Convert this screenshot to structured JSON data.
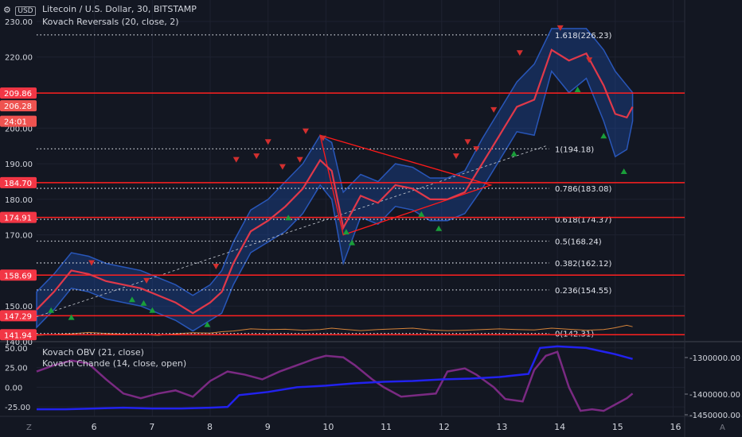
{
  "header": {
    "currency": "USD",
    "title": "Litecoin / U.S. Dollar, 30, BITSTAMP",
    "indicator_main": "Kovach Reversals (20, close, 2)",
    "indicator_lower_1": "Kovach OBV (21, close)",
    "indicator_lower_2": "Kovach Chande (14, close, open)",
    "corner_left": "Z",
    "corner_right": "A"
  },
  "colors": {
    "background": "#131722",
    "grid": "#1e2230",
    "price_line": "#e0394a",
    "band": "#1e50b4",
    "fib": "#c8ccd4",
    "triangle": "#ff1a1a",
    "obv": "#2222ee",
    "chande": "#7a2a82",
    "volume_line": "#d4833a",
    "bull_marker": "#1a9e3a",
    "bear_marker": "#d32f2f"
  },
  "chart_data": [
    {
      "type": "line",
      "name": "price",
      "x_ticks": [
        "6",
        "7",
        "8",
        "9",
        "10",
        "11",
        "12",
        "13",
        "14",
        "15",
        "16"
      ],
      "y_ticks": [
        "140.00",
        "150.00",
        "170.00",
        "180.00",
        "190.00",
        "200.00",
        "220.00",
        "230.00"
      ],
      "ylim": [
        140,
        232
      ],
      "series": [
        {
          "x": [
            5.0,
            5.3,
            5.6,
            5.9,
            6.2,
            6.5,
            6.8,
            7.1,
            7.4,
            7.7,
            8.0,
            8.2,
            8.4,
            8.7,
            9.0,
            9.3,
            9.6,
            9.9,
            10.1,
            10.3,
            10.6,
            10.9,
            11.2,
            11.5,
            11.8,
            12.1,
            12.4,
            12.7,
            13.0,
            13.3,
            13.6,
            13.9,
            14.2,
            14.5,
            14.8,
            15.0,
            15.2,
            15.3
          ],
          "y": [
            149,
            154,
            160,
            159,
            157,
            156,
            155,
            153,
            151,
            148,
            151,
            154,
            162,
            171,
            174,
            178,
            183,
            191,
            188,
            172,
            181,
            179,
            184,
            183,
            180,
            180,
            182,
            190,
            198,
            206,
            208,
            222,
            219,
            221,
            212,
            204,
            203,
            206
          ]
        }
      ],
      "upper_band": [
        154,
        159,
        165,
        164,
        162,
        161,
        160,
        158,
        156,
        153,
        156,
        160,
        168,
        177,
        180,
        185,
        190,
        198,
        196,
        182,
        187,
        185,
        190,
        189,
        186,
        186,
        188,
        197,
        205,
        213,
        218,
        228,
        228,
        228,
        222,
        216,
        212,
        210
      ],
      "lower_band": [
        144,
        149,
        155,
        154,
        152,
        151,
        150,
        148,
        146,
        143,
        146,
        148,
        156,
        165,
        168,
        171,
        176,
        184,
        180,
        162,
        175,
        173,
        178,
        177,
        174,
        174,
        176,
        183,
        191,
        199,
        198,
        216,
        210,
        214,
        202,
        192,
        194,
        202
      ],
      "volume": [
        141.8,
        142.0,
        142.2,
        142.6,
        142.3,
        142.1,
        142.0,
        141.8,
        142.2,
        142.5,
        142.4,
        142.8,
        143.0,
        143.6,
        143.4,
        143.5,
        143.2,
        143.4,
        143.8,
        143.5,
        143.1,
        143.4,
        143.6,
        143.8,
        143.3,
        143.1,
        143.2,
        143.4,
        143.6,
        143.4,
        143.3,
        143.8,
        143.5,
        143.2,
        143.4,
        143.9,
        144.6,
        144.2
      ],
      "bull_markers": [
        [
          5.25,
          149
        ],
        [
          5.6,
          147
        ],
        [
          6.65,
          152
        ],
        [
          6.85,
          151
        ],
        [
          7.0,
          149
        ],
        [
          7.95,
          145
        ],
        [
          9.35,
          175
        ],
        [
          10.35,
          171
        ],
        [
          10.45,
          168
        ],
        [
          11.65,
          176
        ],
        [
          11.95,
          172
        ],
        [
          13.25,
          193
        ],
        [
          14.35,
          211
        ],
        [
          14.8,
          198
        ],
        [
          15.15,
          188
        ]
      ],
      "bear_markers": [
        [
          5.95,
          162
        ],
        [
          6.9,
          157
        ],
        [
          8.1,
          161
        ],
        [
          8.45,
          191
        ],
        [
          8.8,
          192
        ],
        [
          9.0,
          196
        ],
        [
          9.25,
          189
        ],
        [
          9.55,
          191
        ],
        [
          9.65,
          199
        ],
        [
          9.95,
          197
        ],
        [
          12.25,
          192
        ],
        [
          12.45,
          196
        ],
        [
          12.6,
          194
        ],
        [
          12.9,
          205
        ],
        [
          13.35,
          221
        ],
        [
          14.05,
          228
        ],
        [
          14.55,
          219
        ]
      ],
      "fib_levels": [
        {
          "value": 226.23,
          "label": "1.618(226.23)"
        },
        {
          "value": 194.18,
          "label": "1(194.18)"
        },
        {
          "value": 183.08,
          "label": "0.786(183.08)"
        },
        {
          "value": 174.37,
          "label": "0.618(174.37)"
        },
        {
          "value": 168.24,
          "label": "0.5(168.24)"
        },
        {
          "value": 162.12,
          "label": "0.382(162.12)"
        },
        {
          "value": 154.55,
          "label": "0.236(154.55)"
        },
        {
          "value": 142.31,
          "label": "0(142.31)"
        }
      ],
      "red_levels": [
        {
          "value": 209.86,
          "label": "209.86"
        },
        {
          "value": 184.7,
          "label": "184.70"
        },
        {
          "value": 174.91,
          "label": "174.91"
        },
        {
          "value": 158.69,
          "label": "158.69"
        },
        {
          "value": 147.29,
          "label": "147.29"
        },
        {
          "value": 141.94,
          "label": "141.94"
        }
      ],
      "price_tags": [
        {
          "value": 206.28,
          "label": "206.28"
        },
        {
          "value": 203.5,
          "label": "24:01"
        }
      ],
      "triangle": [
        [
          9.9,
          198
        ],
        [
          12.85,
          184
        ],
        [
          10.3,
          170
        ]
      ],
      "trend_line": [
        [
          5.0,
          147
        ],
        [
          13.8,
          195
        ]
      ]
    },
    {
      "type": "line",
      "name": "oscillators",
      "y_ticks_left": [
        "50.00",
        "25.00",
        "0.00",
        "-25.00"
      ],
      "y_ticks_right": [
        "-1300000.00",
        "-1400000.00",
        "-1450000.00"
      ],
      "ylim_left": [
        -37,
        60
      ],
      "series": [
        {
          "name": "Kovach OBV (21, close)",
          "x": [
            5.0,
            5.5,
            6.0,
            6.5,
            7.0,
            7.5,
            8.0,
            8.3,
            8.5,
            9.0,
            9.5,
            10.0,
            10.5,
            11.0,
            11.5,
            12.0,
            12.5,
            13.0,
            13.5,
            13.7,
            14.0,
            14.5,
            15.0,
            15.2,
            15.3
          ],
          "y": [
            -28,
            -28,
            -27,
            -26,
            -27,
            -27,
            -26,
            -25,
            -10,
            -6,
            0,
            2,
            5,
            7,
            8,
            10,
            11,
            13,
            17,
            50,
            52,
            50,
            42,
            38,
            36
          ]
        },
        {
          "name": "Kovach Chande (14, close, open)",
          "x": [
            5.0,
            5.3,
            5.6,
            5.9,
            6.2,
            6.5,
            6.8,
            7.1,
            7.4,
            7.7,
            8.0,
            8.3,
            8.6,
            8.9,
            9.2,
            9.5,
            9.8,
            10.0,
            10.3,
            10.5,
            10.8,
            11.0,
            11.3,
            11.6,
            11.9,
            12.1,
            12.4,
            12.6,
            12.9,
            13.1,
            13.4,
            13.6,
            13.8,
            14.0,
            14.2,
            14.4,
            14.6,
            14.8,
            15.0,
            15.2,
            15.3
          ],
          "y": [
            20,
            28,
            34,
            30,
            10,
            -8,
            -14,
            -8,
            -4,
            -12,
            8,
            20,
            16,
            10,
            20,
            28,
            36,
            40,
            38,
            28,
            10,
            0,
            -12,
            -10,
            -8,
            20,
            24,
            16,
            0,
            -15,
            -18,
            22,
            40,
            45,
            0,
            -30,
            -28,
            -30,
            -22,
            -14,
            -8
          ]
        }
      ]
    }
  ]
}
